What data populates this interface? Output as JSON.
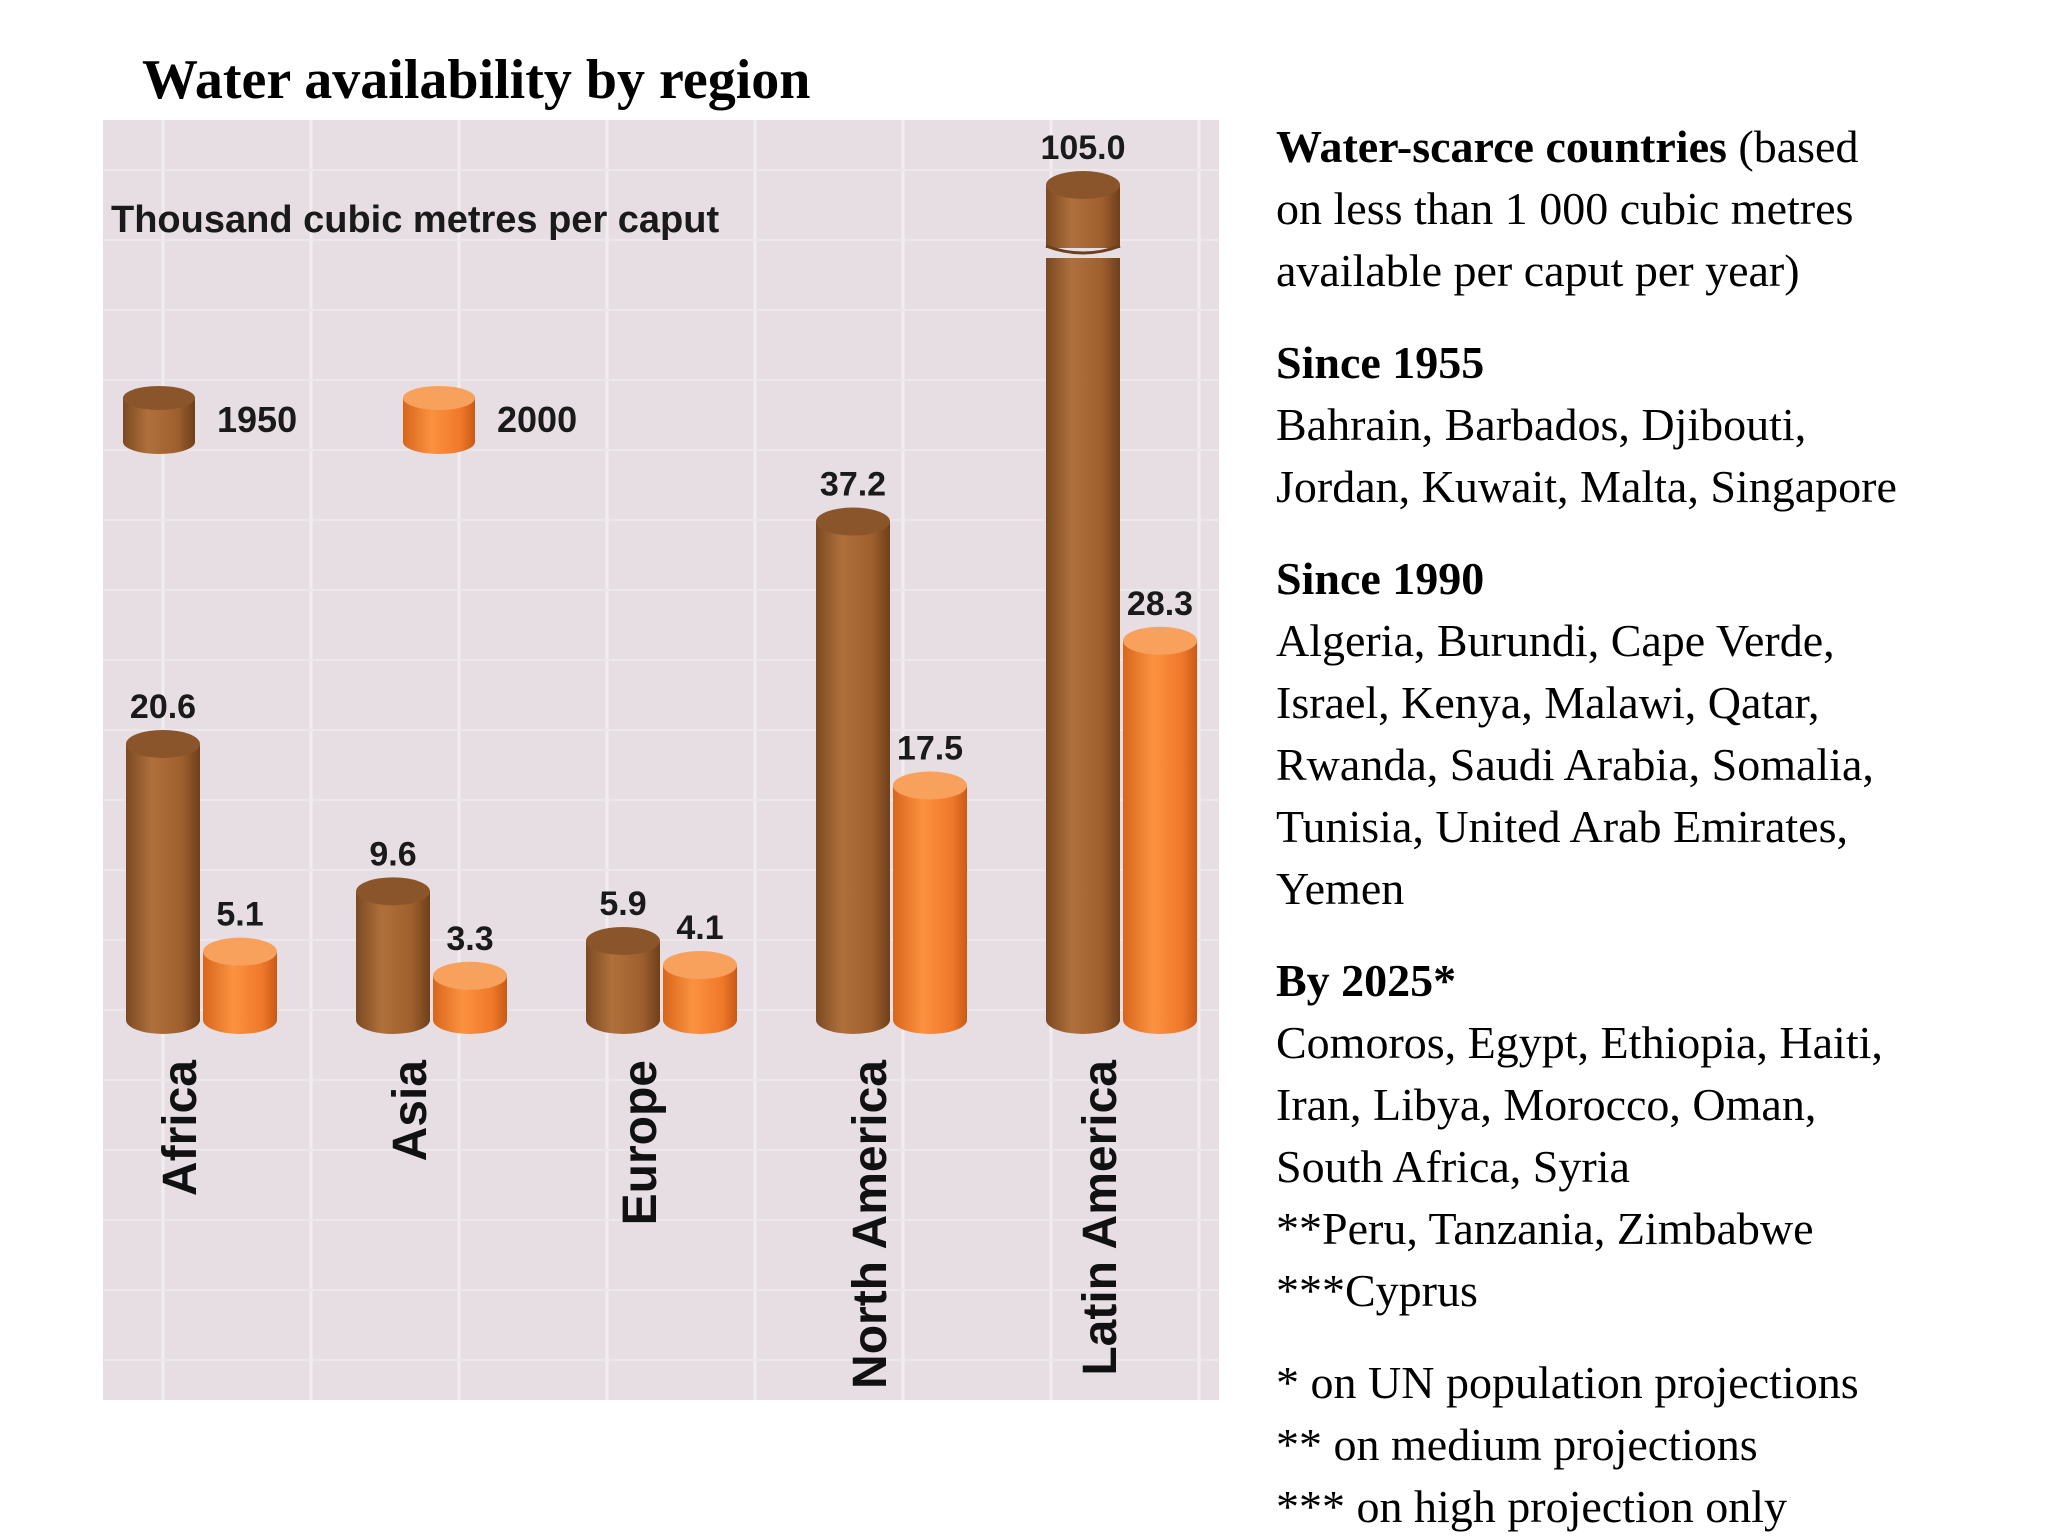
{
  "title": "Water availability by region",
  "chart_data": {
    "type": "bar",
    "title": "Water availability by region",
    "ylabel": "Thousand cubic metres per caput",
    "xlabel": "",
    "categories": [
      "Africa",
      "Asia",
      "Europe",
      "North America",
      "Latin America"
    ],
    "series": [
      {
        "name": "1950",
        "values": [
          20.6,
          9.6,
          5.9,
          37.2,
          105.0
        ],
        "labels": [
          "20.6",
          "9.6",
          "5.9",
          "37.2",
          "105.0"
        ]
      },
      {
        "name": "2000",
        "values": [
          5.1,
          3.3,
          4.1,
          17.5,
          28.3
        ],
        "labels": [
          "5.1",
          "3.3",
          "4.1",
          "17.5",
          "28.3"
        ]
      }
    ],
    "axis_break": true,
    "legend_position": "top-left",
    "colors": {
      "1950": "#a86a3a",
      "2000": "#f5883a",
      "background": "#e6dee2"
    }
  },
  "side": {
    "heading_bold": "Water-scarce countries",
    "heading_rest1": " (based",
    "heading_rest2": "on less than 1 000 cubic metres",
    "heading_rest3": "available per caput per year)",
    "sec1_title": "Since 1955",
    "sec1_l1": "Bahrain, Barbados, Djibouti,",
    "sec1_l2": "Jordan, Kuwait, Malta, Singapore",
    "sec2_title": "Since 1990",
    "sec2_l1": "Algeria, Burundi, Cape Verde,",
    "sec2_l2": "Israel, Kenya, Malawi, Qatar,",
    "sec2_l3": "Rwanda, Saudi Arabia, Somalia,",
    "sec2_l4": "Tunisia, United Arab Emirates,",
    "sec2_l5": "Yemen",
    "sec3_title": "By 2025*",
    "sec3_l1": "Comoros, Egypt, Ethiopia, Haiti,",
    "sec3_l2": "Iran, Libya, Morocco, Oman,",
    "sec3_l3": "South Africa, Syria",
    "sec3_l4": "**Peru, Tanzania, Zimbabwe",
    "sec3_l5": "***Cyprus",
    "note1": "* on UN population projections",
    "note2": "** on medium projections",
    "note3": "*** on high projection only"
  }
}
